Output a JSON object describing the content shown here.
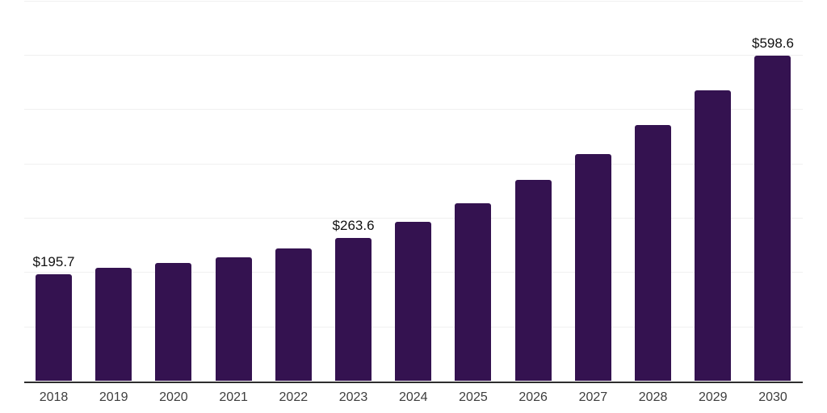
{
  "chart_data": {
    "type": "bar",
    "title": "",
    "xlabel": "",
    "ylabel": "",
    "categories": [
      "2018",
      "2019",
      "2020",
      "2021",
      "2022",
      "2023",
      "2024",
      "2025",
      "2026",
      "2027",
      "2028",
      "2029",
      "2030"
    ],
    "values": [
      195.7,
      208.5,
      217.0,
      226.9,
      243.2,
      263.6,
      292.3,
      326.8,
      369.9,
      417.8,
      471.5,
      534.0,
      598.6
    ],
    "data_labels": [
      {
        "index": 0,
        "text": "$195.7"
      },
      {
        "index": 5,
        "text": "$263.6"
      },
      {
        "index": 12,
        "text": "$598.6"
      }
    ],
    "ylim": [
      0,
      700
    ],
    "grid_step": 100,
    "grid_on": true,
    "y_tick_labels_shown": false,
    "legend_shown": false,
    "colors": {
      "bar": "#341250",
      "axis": "#2e2e2e",
      "grid": "#f0f0f0",
      "tick_label": "#3d3d3d",
      "data_label": "#111111",
      "background": "#ffffff"
    }
  }
}
